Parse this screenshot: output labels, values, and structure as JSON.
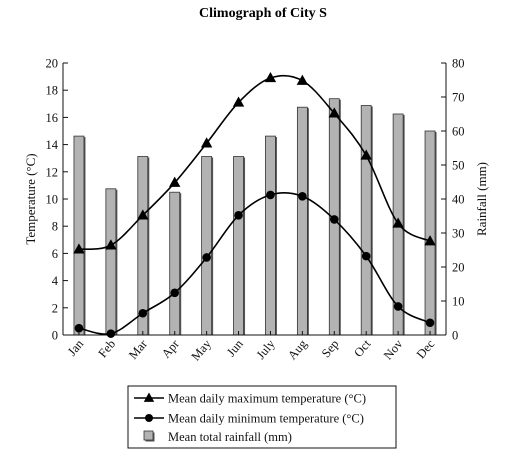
{
  "chart_data": {
    "type": "bar+line",
    "title": "Climograph of City S",
    "categories": [
      "Jan",
      "Feb",
      "Mar",
      "Apr",
      "May",
      "Jun",
      "July",
      "Aug",
      "Sep",
      "Oct",
      "Nov",
      "Dec"
    ],
    "ylabel_left": "Temperature (°C)",
    "ylabel_right": "Rainfall (mm)",
    "ylim_left": [
      0,
      20
    ],
    "yticks_left": [
      0,
      2,
      4,
      6,
      8,
      10,
      12,
      14,
      16,
      18,
      20
    ],
    "ylim_right": [
      0,
      80
    ],
    "yticks_right": [
      0,
      10,
      20,
      30,
      40,
      50,
      60,
      70,
      80
    ],
    "grid": false,
    "legend_position": "bottom-center",
    "series": [
      {
        "name": "Mean daily maximum temperature (°C)",
        "type": "line",
        "marker": "triangle",
        "axis": "left",
        "color": "#000000",
        "values": [
          6.3,
          6.6,
          8.8,
          11.2,
          14.1,
          17.1,
          18.9,
          18.7,
          16.3,
          13.2,
          8.2,
          6.9
        ]
      },
      {
        "name": "Mean daily minimum temperature (°C)",
        "type": "line",
        "marker": "circle",
        "axis": "left",
        "color": "#000000",
        "values": [
          0.5,
          0.1,
          1.6,
          3.1,
          5.7,
          8.8,
          10.3,
          10.2,
          8.5,
          5.8,
          2.1,
          0.9
        ]
      },
      {
        "name": "Mean total rainfall (mm)",
        "type": "bar",
        "axis": "right",
        "color": "#b3b3b3",
        "values": [
          58.5,
          43.0,
          52.5,
          42.0,
          52.5,
          52.5,
          58.5,
          67.0,
          69.5,
          67.5,
          65.0,
          60.0
        ]
      }
    ]
  }
}
